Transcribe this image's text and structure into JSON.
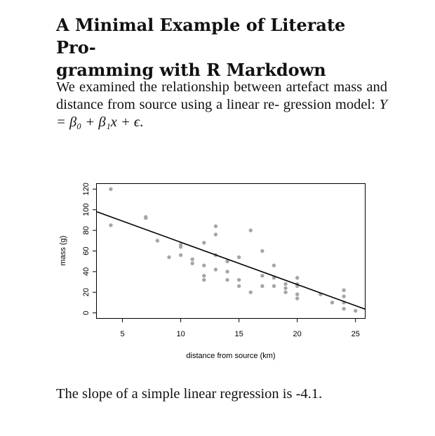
{
  "paper": {
    "title_line1": "A Minimal Example of Literate Pro-",
    "title_line2": "gramming with R Markdown",
    "para_line1": "We examined the relationship between artefact",
    "para_line2": "mass and distance from source using a linear re-",
    "para_line3_prefix": "gression model: ",
    "para_equation": "Y = β₀ + β₁x + ϵ",
    "para_line3_suffix": ".",
    "conclusion": "The slope of a simple linear regression is -4.1."
  },
  "chart_data": {
    "type": "scatter",
    "title": "",
    "xlabel": "distance from source (km)",
    "ylabel": "mass (g)",
    "xlim": [
      2.8,
      25.8
    ],
    "ylim": [
      -5,
      125
    ],
    "x_ticks": [
      5,
      10,
      15,
      20,
      25
    ],
    "y_ticks": [
      0,
      20,
      40,
      60,
      80,
      100,
      120
    ],
    "point_color": "#a6a6a6",
    "line_color": "#000000",
    "grid": false,
    "points": [
      [
        4,
        120
      ],
      [
        4,
        85
      ],
      [
        7,
        93
      ],
      [
        7,
        92
      ],
      [
        8,
        70
      ],
      [
        9,
        54
      ],
      [
        10,
        66
      ],
      [
        10,
        64
      ],
      [
        10,
        56
      ],
      [
        11,
        52
      ],
      [
        11,
        48
      ],
      [
        12,
        68
      ],
      [
        12,
        46
      ],
      [
        12,
        36
      ],
      [
        12,
        32
      ],
      [
        13,
        84
      ],
      [
        13,
        76
      ],
      [
        13,
        56
      ],
      [
        13,
        42
      ],
      [
        14,
        50
      ],
      [
        14,
        40
      ],
      [
        14,
        32
      ],
      [
        15,
        54
      ],
      [
        15,
        32
      ],
      [
        15,
        26
      ],
      [
        16,
        80
      ],
      [
        16,
        20
      ],
      [
        17,
        60
      ],
      [
        17,
        36
      ],
      [
        17,
        26
      ],
      [
        18,
        46
      ],
      [
        18,
        34
      ],
      [
        18,
        26
      ],
      [
        19,
        28
      ],
      [
        19,
        24
      ],
      [
        19,
        20
      ],
      [
        20,
        34
      ],
      [
        20,
        28
      ],
      [
        20,
        26
      ],
      [
        20,
        18
      ],
      [
        20,
        14
      ],
      [
        22,
        18
      ],
      [
        23,
        10
      ],
      [
        24,
        22
      ],
      [
        24,
        16
      ],
      [
        24,
        10
      ],
      [
        24,
        4
      ],
      [
        25,
        2
      ]
    ],
    "regression_line": {
      "intercept": 109.5,
      "slope": -4.1
    }
  }
}
